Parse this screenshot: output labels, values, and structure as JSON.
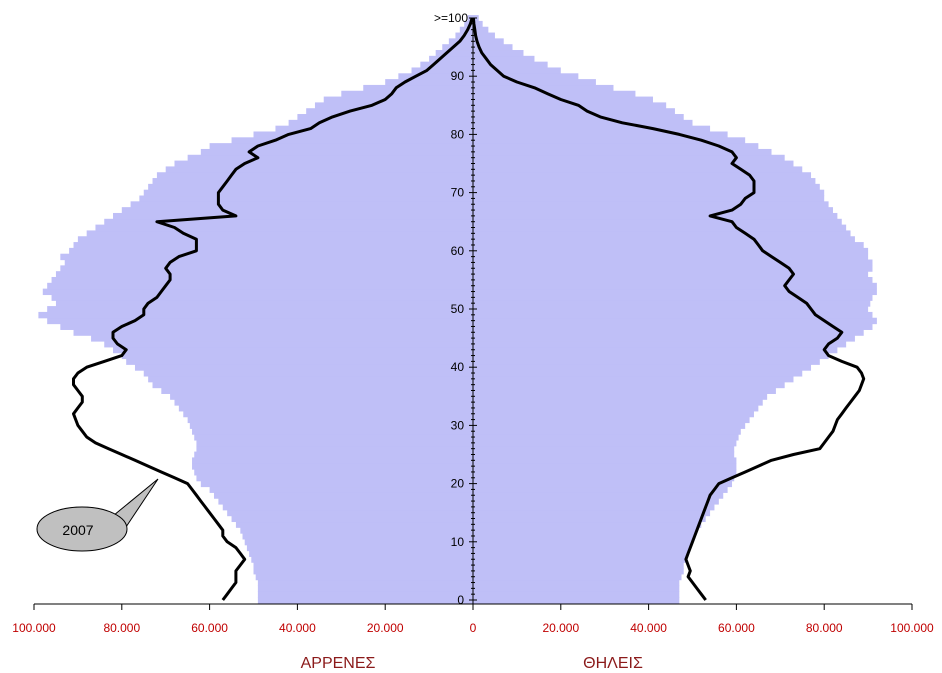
{
  "chart_data": {
    "type": "bar",
    "orientation": "population-pyramid",
    "colors": {
      "bars": "#bfbff7",
      "line": "#000000",
      "x_tick_labels": "#c00000",
      "axis_titles": "#8b1a1a",
      "callout_fill": "#c0c0c0"
    },
    "left_title": "ΑΡΡΕΝΕΣ",
    "right_title": "ΘΗΛΕΙΣ",
    "x_range": [
      -100000,
      100000
    ],
    "y_range": [
      0,
      100
    ],
    "x_ticks": [
      -100000,
      -80000,
      -60000,
      -40000,
      -20000,
      0,
      20000,
      40000,
      60000,
      80000,
      100000
    ],
    "x_tick_labels": [
      "100.000",
      "80.000",
      "60.000",
      "40.000",
      "20.000",
      "0",
      "20.000",
      "40.000",
      "60.000",
      "80.000",
      "100.000"
    ],
    "y_ticks": [
      0,
      10,
      20,
      30,
      40,
      50,
      60,
      70,
      80,
      90
    ],
    "y_tick_labels": [
      "0",
      "10",
      "20",
      "30",
      "40",
      "50",
      "60",
      "70",
      "80",
      "90"
    ],
    "y_top_label": ">=100",
    "ages": [
      0,
      1,
      2,
      3,
      4,
      5,
      6,
      7,
      8,
      9,
      10,
      11,
      12,
      13,
      14,
      15,
      16,
      17,
      18,
      19,
      20,
      21,
      22,
      23,
      24,
      25,
      26,
      27,
      28,
      29,
      30,
      31,
      32,
      33,
      34,
      35,
      36,
      37,
      38,
      39,
      40,
      41,
      42,
      43,
      44,
      45,
      46,
      47,
      48,
      49,
      50,
      51,
      52,
      53,
      54,
      55,
      56,
      57,
      58,
      59,
      60,
      61,
      62,
      63,
      64,
      65,
      66,
      67,
      68,
      69,
      70,
      71,
      72,
      73,
      74,
      75,
      76,
      77,
      78,
      79,
      80,
      81,
      82,
      83,
      84,
      85,
      86,
      87,
      88,
      89,
      90,
      91,
      92,
      93,
      94,
      95,
      96,
      97,
      98,
      99,
      100
    ],
    "series": [
      {
        "kind": "bars",
        "side": "male",
        "values": [
          49000,
          49000,
          49000,
          49000,
          49500,
          50000,
          50000,
          50500,
          51000,
          51500,
          52000,
          52500,
          53000,
          54000,
          55000,
          56000,
          57000,
          58000,
          59000,
          60000,
          62000,
          63000,
          63500,
          64000,
          64000,
          63500,
          63000,
          63000,
          63500,
          64000,
          64500,
          65000,
          66000,
          67000,
          68000,
          69000,
          71000,
          73000,
          74000,
          75000,
          77000,
          79000,
          80000,
          82000,
          84000,
          87000,
          91000,
          94000,
          97000,
          99000,
          97000,
          95000,
          96000,
          98000,
          97000,
          96000,
          95000,
          94000,
          93000,
          94000,
          92000,
          91000,
          90000,
          88000,
          86000,
          84000,
          82000,
          80000,
          78000,
          76000,
          75000,
          74000,
          73000,
          72000,
          70000,
          68000,
          65000,
          62000,
          60000,
          55000,
          50000,
          45000,
          42000,
          40000,
          38000,
          36000,
          34000,
          30000,
          25000,
          20000,
          17000,
          14000,
          12000,
          10000,
          8500,
          7000,
          5500,
          4000,
          3000,
          2000,
          1200
        ]
      },
      {
        "kind": "bars",
        "side": "female",
        "values": [
          47000,
          47000,
          47000,
          47000,
          47500,
          48000,
          48000,
          48500,
          49000,
          49500,
          50000,
          50500,
          51000,
          52000,
          53000,
          54000,
          55000,
          56000,
          57000,
          58000,
          59000,
          59500,
          60000,
          60000,
          60000,
          59500,
          59500,
          60000,
          60500,
          61000,
          62000,
          63000,
          64000,
          65000,
          66000,
          67000,
          69000,
          71000,
          73000,
          75000,
          77000,
          79000,
          81000,
          83000,
          85000,
          87000,
          89000,
          91000,
          92000,
          91000,
          90000,
          90500,
          91000,
          92000,
          92000,
          91000,
          90000,
          91000,
          91000,
          90000,
          90000,
          89000,
          87000,
          86000,
          85000,
          84000,
          83000,
          82000,
          81000,
          80000,
          80000,
          79000,
          78000,
          77000,
          75000,
          73000,
          71000,
          68000,
          65000,
          62000,
          58000,
          54000,
          50000,
          48000,
          46000,
          44000,
          41000,
          37000,
          32000,
          28000,
          24000,
          20000,
          17000,
          14000,
          11500,
          9000,
          7000,
          5000,
          3500,
          2200,
          1300
        ]
      },
      {
        "kind": "line",
        "side": "male",
        "name": "2007",
        "values": [
          57000,
          56000,
          55000,
          54000,
          54000,
          54000,
          53000,
          52000,
          53000,
          54000,
          56000,
          57000,
          57000,
          58000,
          59000,
          60000,
          61000,
          62000,
          63000,
          64000,
          65000,
          68000,
          71000,
          74000,
          77000,
          80000,
          83000,
          86000,
          88000,
          89000,
          90000,
          90500,
          91000,
          90000,
          89000,
          89000,
          90000,
          91000,
          91000,
          90000,
          88000,
          84000,
          80000,
          79000,
          81000,
          82000,
          82000,
          80000,
          77000,
          75000,
          75000,
          74000,
          72000,
          71000,
          70000,
          69000,
          69000,
          70000,
          69000,
          67000,
          63000,
          63000,
          63000,
          66000,
          68000,
          72000,
          54000,
          57000,
          58000,
          58000,
          58000,
          57000,
          56000,
          55000,
          54000,
          52000,
          49000,
          51000,
          49000,
          45000,
          42000,
          37000,
          35000,
          32000,
          28000,
          23000,
          20000,
          18500,
          17500,
          15500,
          13000,
          10500,
          9000,
          7500,
          6000,
          4500,
          3000,
          2000,
          1200,
          600,
          200
        ]
      },
      {
        "kind": "line",
        "side": "female",
        "values": [
          53000,
          52000,
          51000,
          50000,
          49000,
          49500,
          49000,
          48500,
          49000,
          49500,
          50000,
          50500,
          51000,
          51500,
          52000,
          52500,
          53000,
          53500,
          54000,
          55000,
          56000,
          59000,
          62000,
          65000,
          68000,
          73000,
          79000,
          80000,
          81000,
          82000,
          82500,
          83000,
          84000,
          85000,
          86000,
          87000,
          88000,
          88500,
          89000,
          88500,
          87500,
          84000,
          81000,
          80000,
          81000,
          83000,
          84000,
          82000,
          80000,
          78000,
          77000,
          76000,
          74000,
          72000,
          71000,
          72000,
          73000,
          72000,
          70000,
          68000,
          66000,
          65000,
          64000,
          62000,
          60000,
          59000,
          54000,
          59000,
          61000,
          62000,
          64000,
          64000,
          64000,
          63000,
          61000,
          59000,
          60000,
          59000,
          56000,
          52000,
          47000,
          41000,
          34000,
          29000,
          26000,
          24000,
          20000,
          17000,
          14000,
          10000,
          7000,
          5500,
          4000,
          3000,
          2000,
          1400,
          900,
          600,
          400,
          200,
          100
        ]
      }
    ],
    "annotations": [
      {
        "text": "2007",
        "target": "male-line"
      }
    ]
  }
}
